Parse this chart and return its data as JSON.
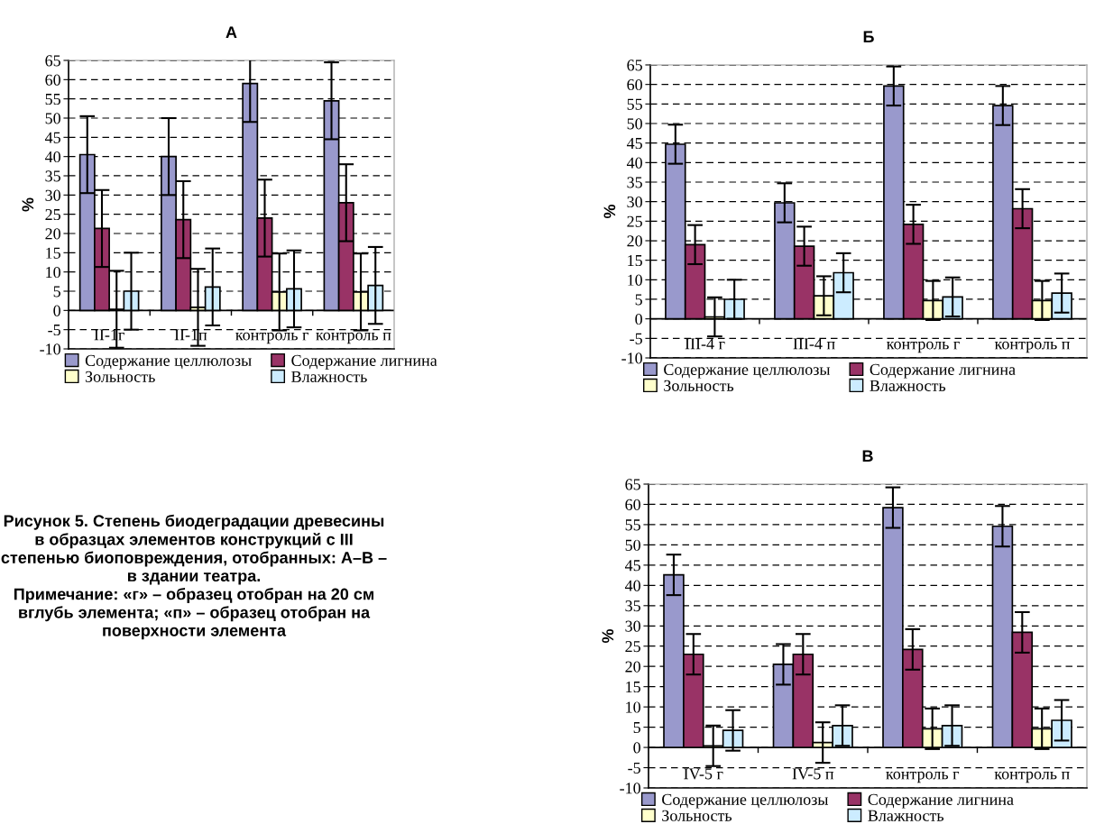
{
  "chart_data": [
    {
      "type": "bar",
      "title": "А",
      "ylabel": "%",
      "categories": [
        "II-1г",
        "II-1п",
        "контроль г",
        "контроль п"
      ],
      "ylim": [
        -10,
        65
      ],
      "yticks": [
        -10,
        -5,
        0,
        5,
        10,
        15,
        20,
        25,
        30,
        35,
        40,
        45,
        50,
        55,
        60,
        65
      ],
      "grid": "y",
      "legend": "bottom",
      "annotations": [
        "Рисунок 5. Степень биодеградации древесины\nв образцах элементов конструкций с III\nстепенью биоповреждения, отобранных: А–В –\nв здании театра.\nПримечание: «г» – образец отобран на 20 см\nвглубь элемента; «п» – образец отобран на\nповерхности элемента"
      ],
      "series": [
        {
          "name": "Содержание целлюлозы",
          "color": "#9999cc",
          "values": [
            40.5,
            40,
            59,
            54.5
          ],
          "errors": [
            10,
            10,
            10,
            10
          ]
        },
        {
          "name": "Содержание лигнина",
          "color": "#993366",
          "values": [
            21.3,
            23.6,
            24,
            28
          ],
          "errors": [
            10,
            10,
            10,
            10
          ]
        },
        {
          "name": "Зольность",
          "color": "#ffffcc",
          "values": [
            0.3,
            0.8,
            4.8,
            4.8
          ],
          "errors": [
            10,
            10,
            10,
            10
          ]
        },
        {
          "name": "Влажность",
          "color": "#ccecff",
          "values": [
            5,
            6.1,
            5.6,
            6.5
          ],
          "errors": [
            10,
            10,
            10,
            10
          ]
        }
      ]
    },
    {
      "type": "bar",
      "title": "Б",
      "ylabel": "%",
      "categories": [
        "III-4 г",
        "III-4 п",
        "контроль г",
        "контроль п"
      ],
      "ylim": [
        -10,
        65
      ],
      "yticks": [
        -10,
        -5,
        0,
        5,
        10,
        15,
        20,
        25,
        30,
        35,
        40,
        45,
        50,
        55,
        60,
        65
      ],
      "grid": "y",
      "legend": "bottom",
      "series": [
        {
          "name": "Содержание целлюлозы",
          "color": "#9999cc",
          "values": [
            44.7,
            29.7,
            59.6,
            54.6
          ],
          "errors": [
            5,
            5,
            5,
            5
          ]
        },
        {
          "name": "Содержание лигнина",
          "color": "#993366",
          "values": [
            19,
            18.6,
            24.2,
            28.2
          ],
          "errors": [
            5,
            5,
            5,
            5
          ]
        },
        {
          "name": "Зольность",
          "color": "#ffffcc",
          "values": [
            0.5,
            5.9,
            4.7,
            4.7
          ],
          "errors": [
            5,
            5,
            5,
            5
          ]
        },
        {
          "name": "Влажность",
          "color": "#ccecff",
          "values": [
            5,
            11.8,
            5.6,
            6.6
          ],
          "errors": [
            5,
            5,
            5,
            5
          ]
        }
      ]
    },
    {
      "type": "bar",
      "title": "В",
      "ylabel": "%",
      "categories": [
        "IV-5 г",
        "IV-5 п",
        "контроль г",
        "контроль п"
      ],
      "ylim": [
        -10,
        65
      ],
      "yticks": [
        -10,
        -5,
        0,
        5,
        10,
        15,
        20,
        25,
        30,
        35,
        40,
        45,
        50,
        55,
        60,
        65
      ],
      "grid": "y",
      "legend": "bottom",
      "series": [
        {
          "name": "Содержание целлюлозы",
          "color": "#9999cc",
          "values": [
            42.6,
            20.5,
            59.2,
            54.6
          ],
          "errors": [
            5,
            5,
            5,
            5
          ]
        },
        {
          "name": "Содержание лигнина",
          "color": "#993366",
          "values": [
            23,
            23,
            24.2,
            28.4
          ],
          "errors": [
            5,
            5,
            5,
            5
          ]
        },
        {
          "name": "Зольность",
          "color": "#ffffcc",
          "values": [
            0.4,
            1.2,
            4.6,
            4.6
          ],
          "errors": [
            5,
            5,
            5,
            5
          ]
        },
        {
          "name": "Влажность",
          "color": "#ccecff",
          "values": [
            4.2,
            5.4,
            5.4,
            6.7
          ],
          "errors": [
            5,
            5,
            5,
            5
          ]
        }
      ]
    }
  ]
}
